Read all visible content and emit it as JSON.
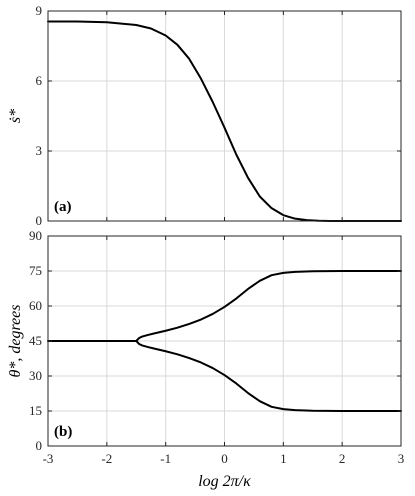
{
  "chart_data": [
    {
      "type": "line",
      "panel_label": "(a)",
      "ylabel": "ṡ*",
      "xlabel": "",
      "xlim": [
        -3,
        3
      ],
      "ylim": [
        0,
        9
      ],
      "xticks": [
        -3,
        -2,
        -1,
        0,
        1,
        2,
        3
      ],
      "yticks": [
        0,
        3,
        6,
        9
      ],
      "grid": true,
      "line_color": "#000000",
      "series": [
        {
          "x": [
            -3.0,
            -2.5,
            -2.0,
            -1.5,
            -1.25,
            -1.0,
            -0.8,
            -0.6,
            -0.4,
            -0.2,
            0.0,
            0.2,
            0.4,
            0.6,
            0.8,
            1.0,
            1.2,
            1.4,
            1.6,
            1.8,
            2.0,
            2.5,
            3.0
          ],
          "y": [
            8.55,
            8.55,
            8.52,
            8.4,
            8.25,
            7.95,
            7.55,
            6.95,
            6.1,
            5.1,
            4.0,
            2.85,
            1.85,
            1.05,
            0.55,
            0.25,
            0.1,
            0.04,
            0.01,
            0.0,
            0.0,
            0.0,
            0.0
          ]
        }
      ]
    },
    {
      "type": "line",
      "panel_label": "(b)",
      "ylabel": "θ*, degrees",
      "xlabel": "log 2π/κ",
      "xlim": [
        -3,
        3
      ],
      "ylim": [
        0,
        90
      ],
      "xticks": [
        -3,
        -2,
        -1,
        0,
        1,
        2,
        3
      ],
      "yticks": [
        0,
        15,
        30,
        45,
        60,
        75,
        90
      ],
      "grid": true,
      "line_color": "#000000",
      "series": [
        {
          "x": [
            -3.0,
            -2.0,
            -1.5
          ],
          "y": [
            45,
            45,
            45
          ]
        },
        {
          "x": [
            -1.5,
            -1.45,
            -1.4,
            -1.3,
            -1.2,
            -1.0,
            -0.8,
            -0.6,
            -0.4,
            -0.2,
            0.0,
            0.2,
            0.4,
            0.6,
            0.8,
            1.0,
            1.2,
            1.5,
            2.0,
            2.5,
            3.0
          ],
          "y": [
            45,
            46.3,
            46.9,
            47.6,
            48.2,
            49.4,
            50.7,
            52.3,
            54.2,
            56.6,
            59.6,
            63.2,
            67.3,
            70.8,
            73.2,
            74.2,
            74.6,
            74.9,
            75,
            75,
            75
          ]
        },
        {
          "x": [
            -1.5,
            -1.45,
            -1.4,
            -1.3,
            -1.2,
            -1.0,
            -0.8,
            -0.6,
            -0.4,
            -0.2,
            0.0,
            0.2,
            0.4,
            0.6,
            0.8,
            1.0,
            1.2,
            1.5,
            2.0,
            2.5,
            3.0
          ],
          "y": [
            45,
            43.7,
            43.1,
            42.4,
            41.8,
            40.6,
            39.3,
            37.7,
            35.8,
            33.4,
            30.4,
            26.8,
            22.7,
            19.2,
            16.8,
            15.8,
            15.4,
            15.1,
            15,
            15,
            15
          ]
        }
      ]
    }
  ]
}
